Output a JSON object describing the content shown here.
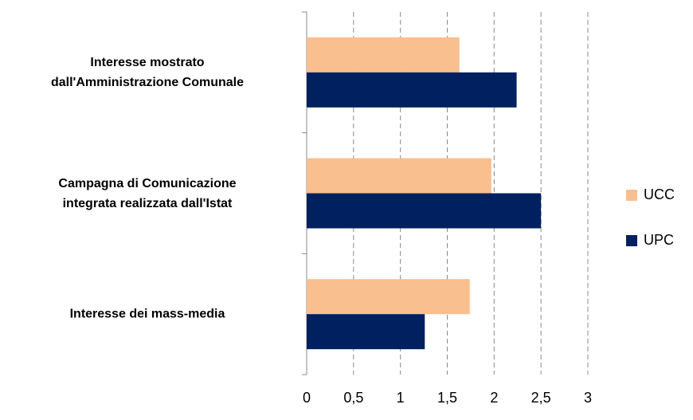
{
  "chart_data": {
    "type": "bar",
    "orientation": "horizontal",
    "categories": [
      "Interesse mostrato\ndall'Amministrazione  Comunale",
      "Campagna di Comunicazione\nintegrata realizzata dall'Istat",
      "Interesse dei mass-media"
    ],
    "series": [
      {
        "name": "UCC",
        "color": "#f9bf8f",
        "values": [
          1.63,
          1.97,
          1.74
        ]
      },
      {
        "name": "UPC",
        "color": "#002060",
        "values": [
          2.24,
          2.5,
          1.26
        ]
      }
    ],
    "xlim": [
      0,
      3
    ],
    "xticks": [
      0,
      {
        "value": 0.5,
        "label": "0,5"
      },
      1,
      {
        "value": 1.5,
        "label": "1,5"
      },
      2,
      {
        "value": 2.5,
        "label": "2,5"
      },
      3
    ],
    "grid": true,
    "legend": "right"
  }
}
